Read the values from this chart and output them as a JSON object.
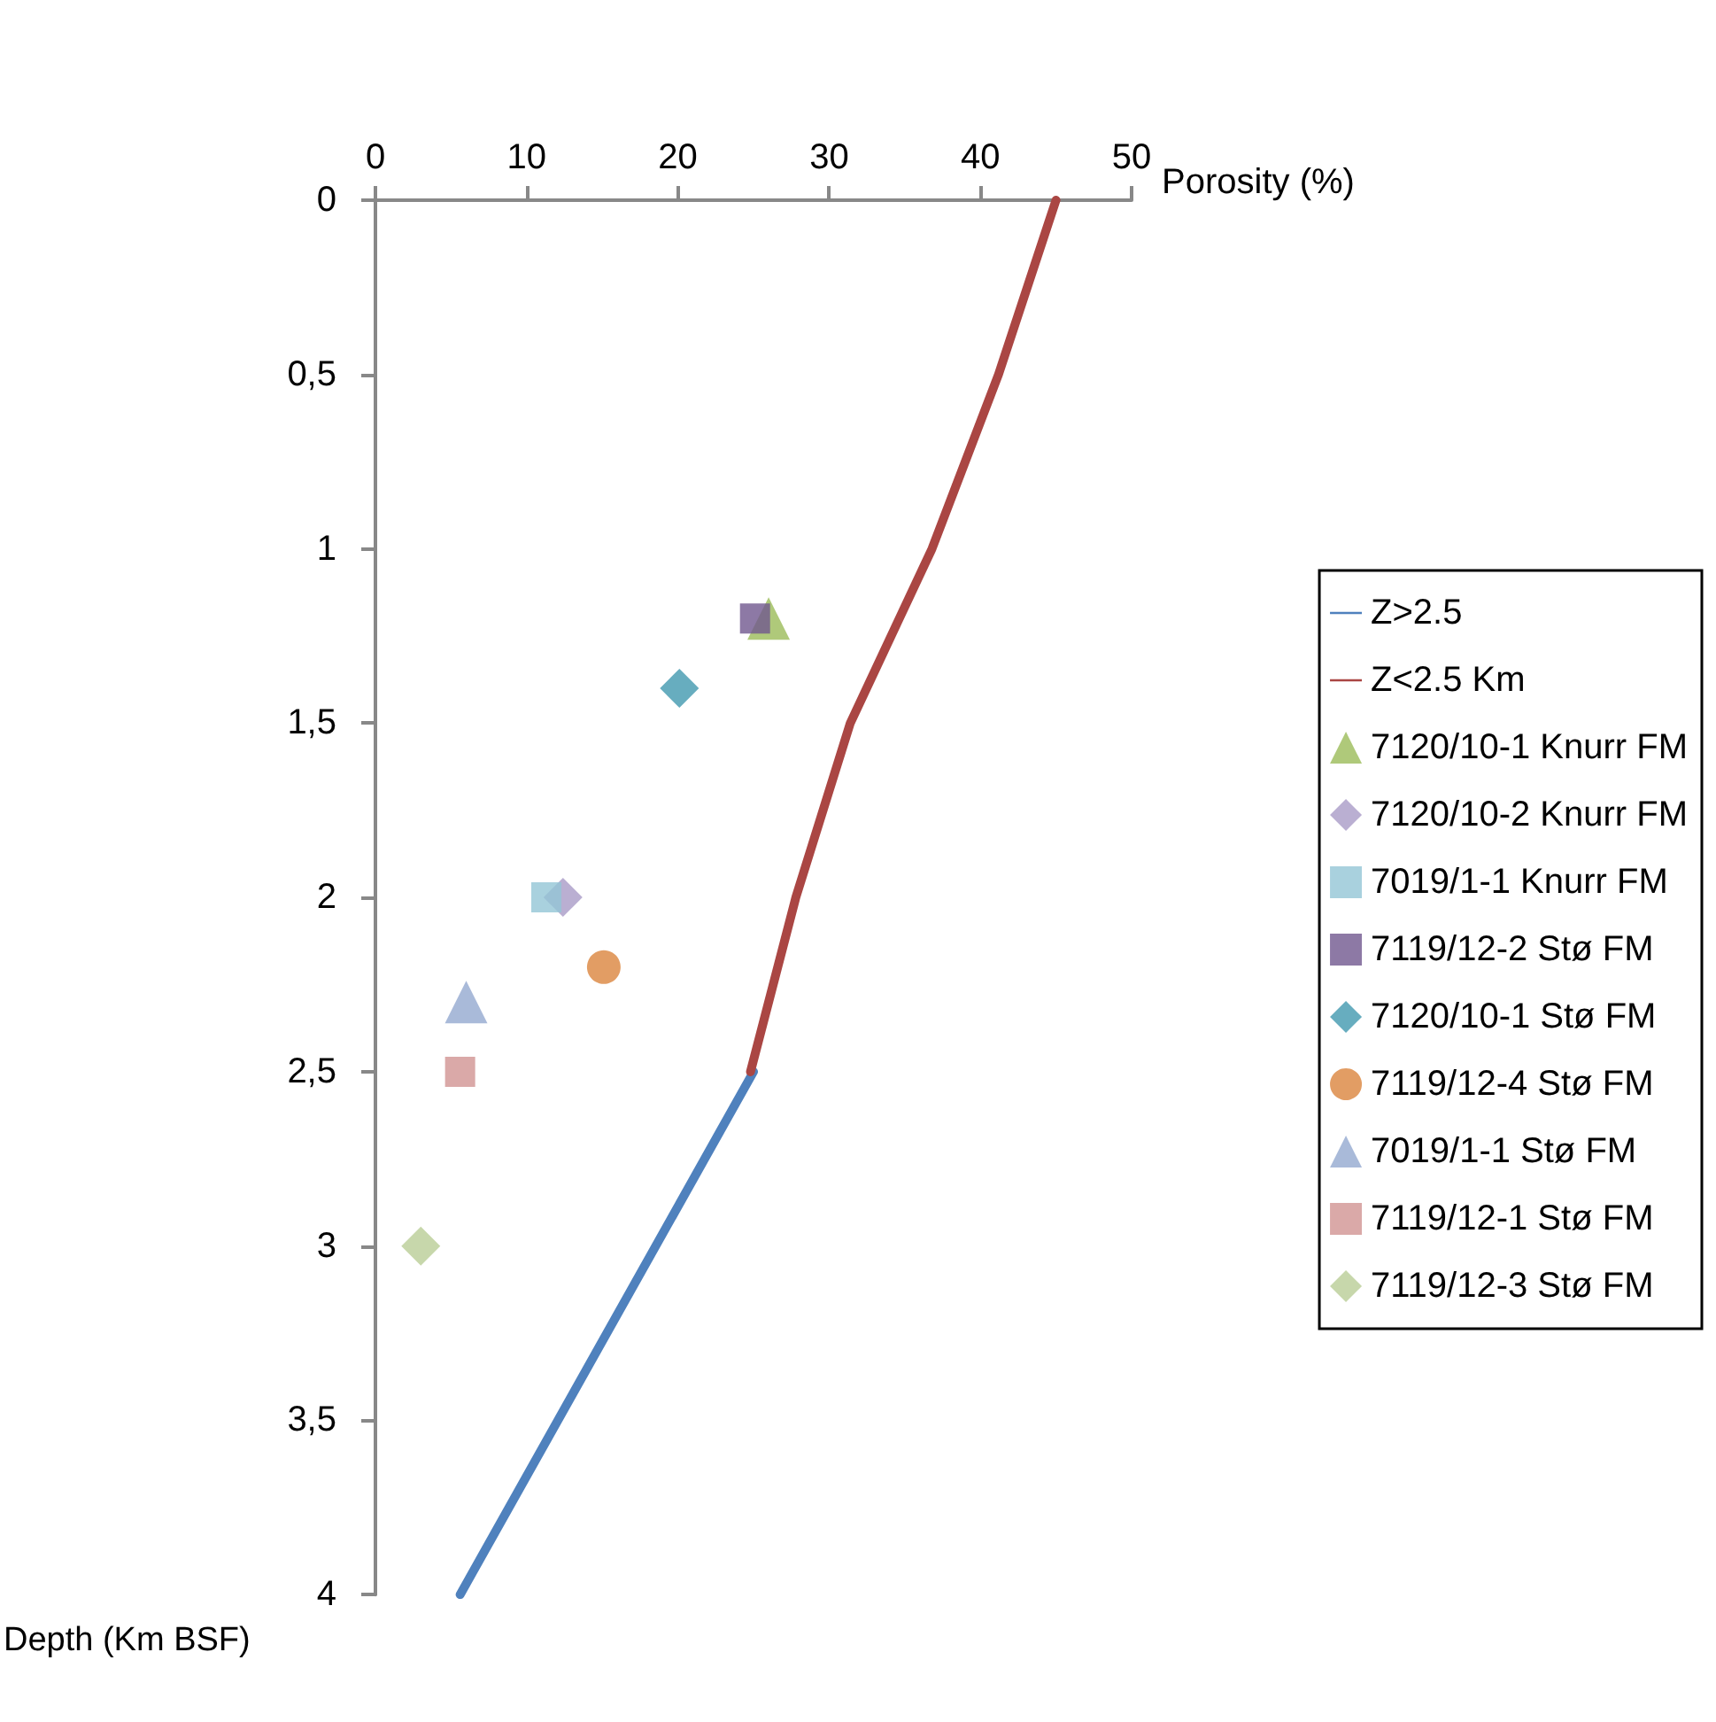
{
  "chart_data": {
    "type": "scatter",
    "xlabel": "Porosity (%)",
    "ylabel": "Depth (Km BSF)",
    "xlim": [
      0,
      50
    ],
    "xticks": [
      0,
      10,
      20,
      30,
      40,
      50
    ],
    "ylim": [
      4,
      0
    ],
    "yticks": [
      0,
      {
        "value": 0.5,
        "label": "0,5"
      },
      1,
      {
        "value": 1.5,
        "label": "1,5"
      },
      2,
      {
        "value": 2.5,
        "label": "2,5"
      },
      3,
      {
        "value": 3.5,
        "label": "3,5"
      },
      4
    ],
    "grid": false,
    "legend": "right",
    "series": [
      {
        "name": "Z>2.5",
        "type": "line",
        "marker": "none",
        "color": "#4f81bd",
        "x": [
          25,
          5.6
        ],
        "values": [
          2.5,
          4
        ]
      },
      {
        "name": "Z<2.5 Km",
        "type": "line",
        "marker": "none",
        "color": "#aa4643",
        "x": [
          45,
          41.2,
          36.8,
          31.4,
          27.8,
          24.8
        ],
        "values": [
          0,
          0.5,
          1,
          1.5,
          2,
          2.5
        ]
      },
      {
        "name": "7120/10-1 Knurr FM",
        "marker": "triangle",
        "color": "#9bbb59",
        "x": [
          26
        ],
        "values": [
          1.2
        ]
      },
      {
        "name": "7120/10-2 Knurr FM",
        "marker": "diamond",
        "color": "#a99bc7",
        "x": [
          12.4
        ],
        "values": [
          2
        ]
      },
      {
        "name": "7019/1-1 Knurr FM",
        "marker": "square",
        "color": "#93c6d6",
        "x": [
          11.3
        ],
        "values": [
          2
        ]
      },
      {
        "name": "7119/12-2 Stø FM",
        "marker": "square",
        "color": "#71588f",
        "x": [
          25.1
        ],
        "values": [
          1.2
        ]
      },
      {
        "name": "7120/10-1 Stø FM",
        "marker": "diamond",
        "color": "#4198af",
        "x": [
          20.1
        ],
        "values": [
          1.4
        ]
      },
      {
        "name": "7119/12-4 Stø FM",
        "marker": "circle",
        "color": "#db843d",
        "x": [
          15.1
        ],
        "values": [
          2.2
        ]
      },
      {
        "name": "7019/1-1 Stø FM",
        "marker": "triangle",
        "color": "#93a9cf",
        "x": [
          6
        ],
        "values": [
          2.3
        ]
      },
      {
        "name": "7119/12-1 Stø FM",
        "marker": "square",
        "color": "#d19392",
        "x": [
          5.6
        ],
        "values": [
          2.5
        ]
      },
      {
        "name": "7119/12-3 Stø FM",
        "marker": "diamond",
        "color": "#b9cd96",
        "x": [
          3
        ],
        "values": [
          3
        ]
      }
    ]
  }
}
